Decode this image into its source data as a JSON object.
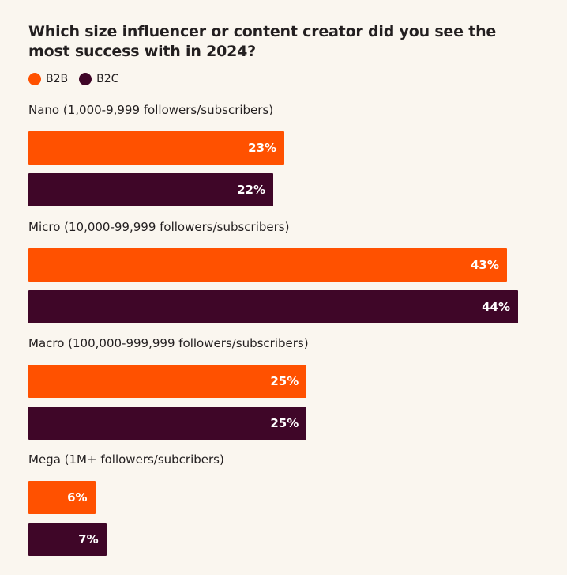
{
  "chart_data": {
    "type": "bar",
    "orientation": "horizontal",
    "title": "Which size influencer or content creator did you see the most success with in 2024?",
    "categories": [
      "Nano (1,000-9,999 followers/subscribers)",
      "Micro (10,000-99,999 followers/subscribers)",
      "Macro (100,000-999,999 followers/subscribers)",
      "Mega (1M+ followers/subcribers)"
    ],
    "series": [
      {
        "name": "B2B",
        "color": "#ff5100",
        "values": [
          23,
          43,
          25,
          6
        ]
      },
      {
        "name": "B2C",
        "color": "#3f0628",
        "values": [
          22,
          44,
          25,
          7
        ]
      }
    ],
    "value_format": "percent",
    "legend": "top-left",
    "grid": false,
    "xlim": [
      0,
      44
    ]
  }
}
